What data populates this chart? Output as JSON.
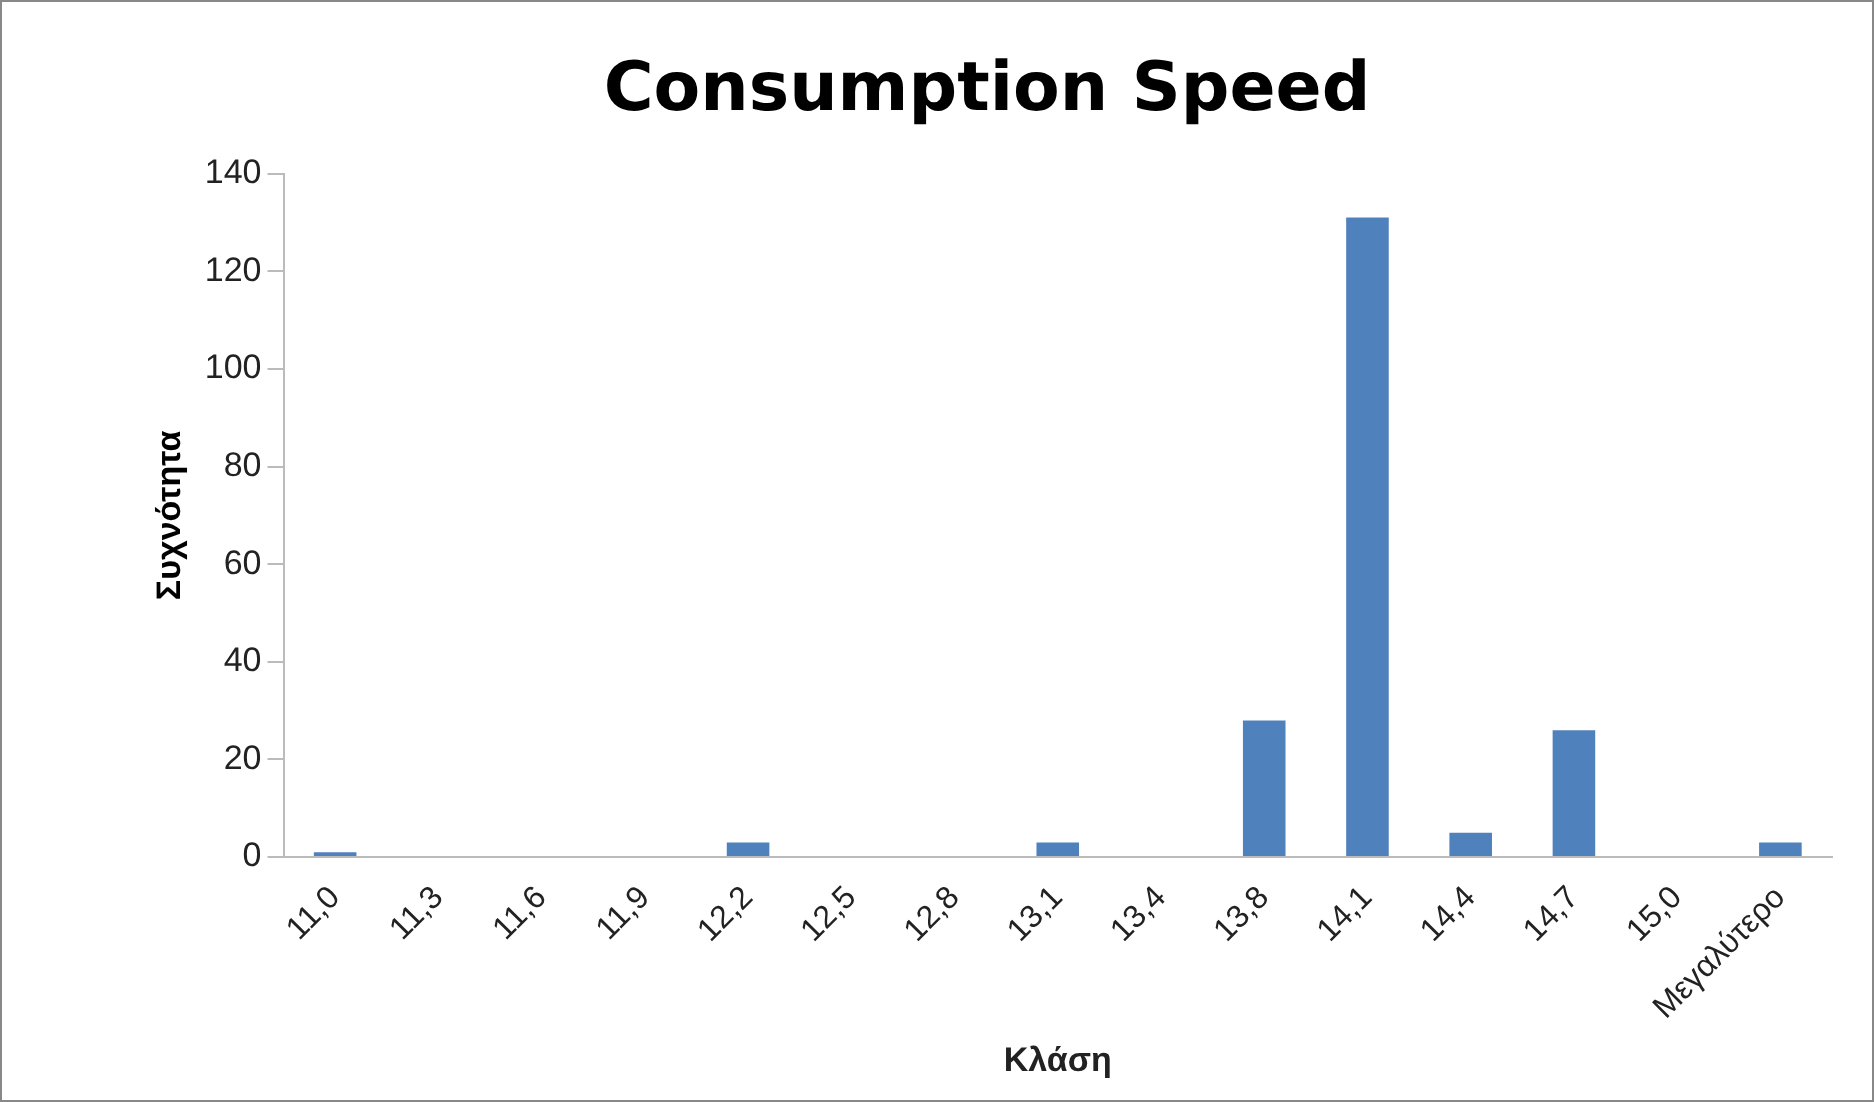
{
  "chart_data": {
    "type": "bar",
    "title": "Consumption Speed",
    "xlabel": "Κλάση",
    "ylabel": "Συχνότητα",
    "categories": [
      "11,0",
      "11,3",
      "11,6",
      "11,9",
      "12,2",
      "12,5",
      "12,8",
      "13,1",
      "13,4",
      "13,8",
      "14,1",
      "14,4",
      "14,7",
      "15,0",
      "Μεγαλύτερο"
    ],
    "values": [
      1,
      0,
      0,
      0,
      3,
      0,
      0,
      3,
      0,
      28,
      131,
      5,
      26,
      0,
      3
    ],
    "color": "#4f81bd",
    "ylim": [
      0,
      140
    ],
    "yticks": [
      0,
      20,
      40,
      60,
      80,
      100,
      120,
      140
    ],
    "grid": false,
    "legend": false
  }
}
